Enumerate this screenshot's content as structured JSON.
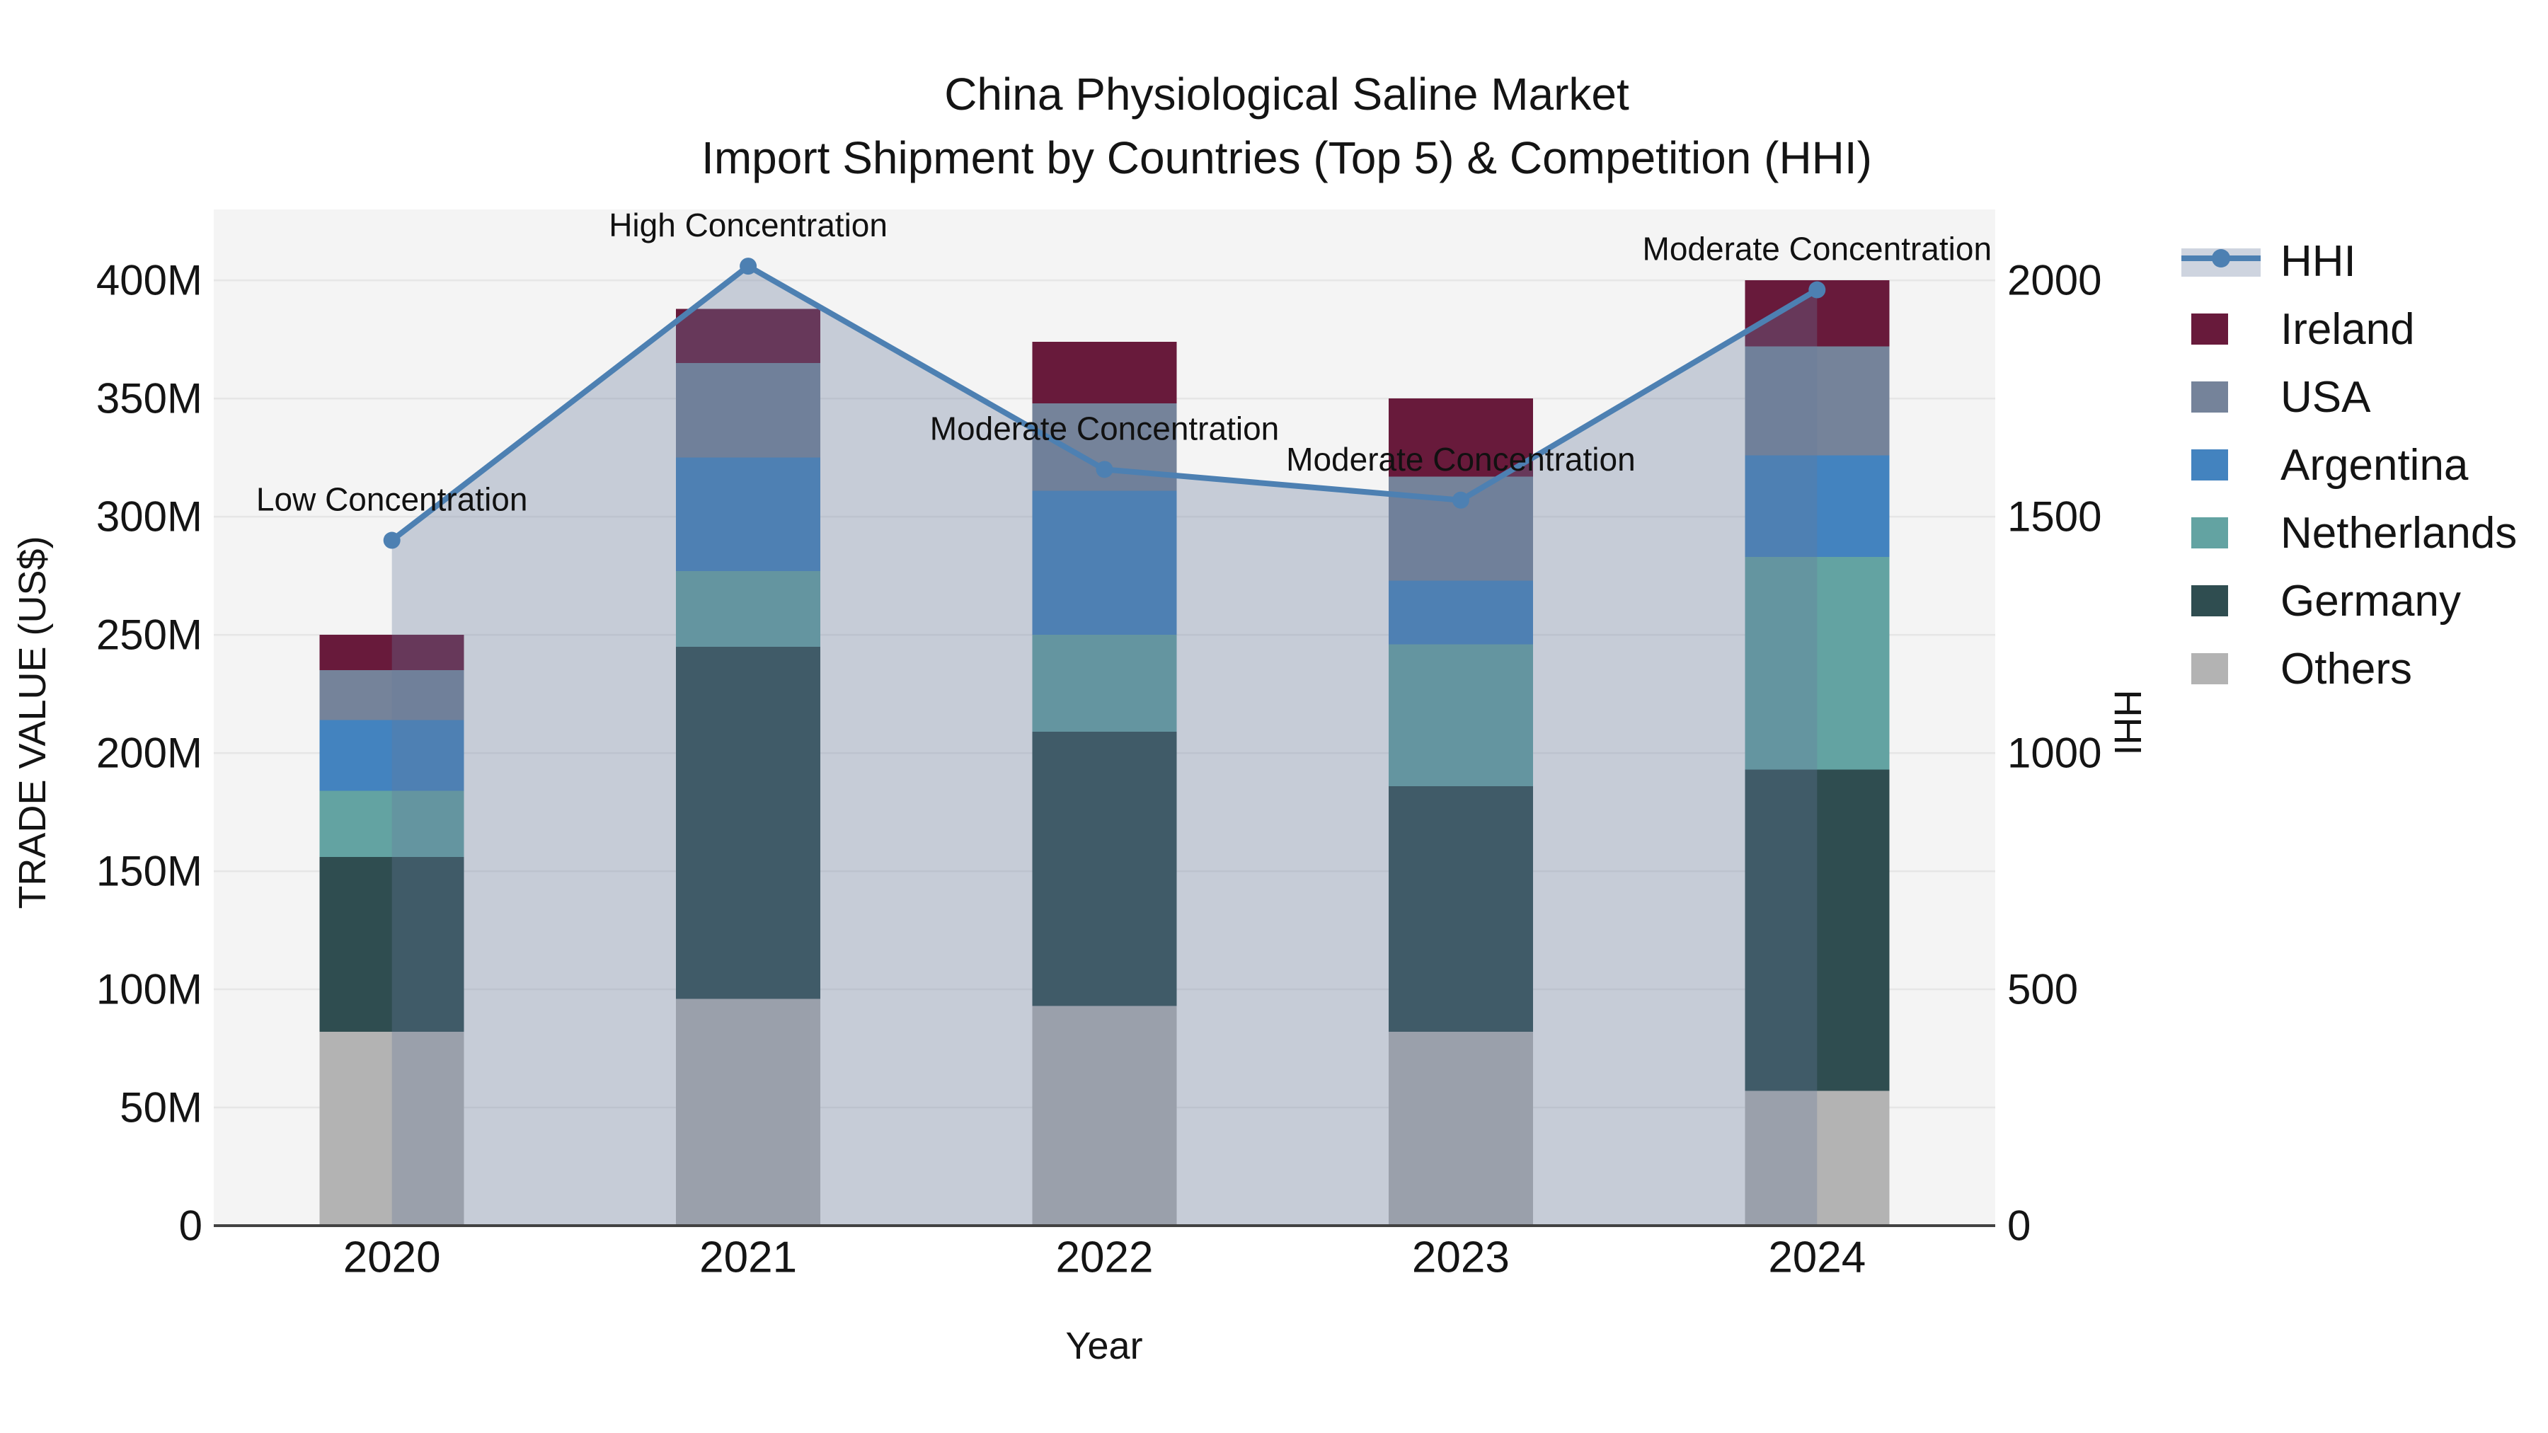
{
  "title": {
    "line1": "China Physiological Saline Market",
    "line2": "Import Shipment by Countries (Top 5) & Competition (HHI)"
  },
  "axes": {
    "x_label": "Year",
    "y_left_label": "TRADE VALUE (US$)",
    "y_right_label": "HHI",
    "y_left_ticks": [
      "0",
      "50M",
      "100M",
      "150M",
      "200M",
      "250M",
      "300M",
      "350M",
      "400M"
    ],
    "y_right_ticks": [
      "0",
      "500",
      "1000",
      "1500",
      "2000"
    ]
  },
  "legend": {
    "items": [
      {
        "label": "HHI",
        "type": "line",
        "color": "#4d80b2"
      },
      {
        "label": "Ireland",
        "type": "box",
        "color": "#681a3b"
      },
      {
        "label": "USA",
        "type": "box",
        "color": "#75839a"
      },
      {
        "label": "Argentina",
        "type": "box",
        "color": "#4383bf"
      },
      {
        "label": "Netherlands",
        "type": "box",
        "color": "#63a3a2"
      },
      {
        "label": "Germany",
        "type": "box",
        "color": "#2f4d50"
      },
      {
        "label": "Others",
        "type": "box",
        "color": "#b3b3b3"
      }
    ]
  },
  "chart_data": {
    "type": "bar+line",
    "categories": [
      "2020",
      "2021",
      "2022",
      "2023",
      "2024"
    ],
    "stack_order_bottom_to_top": [
      "Others",
      "Germany",
      "Netherlands",
      "Argentina",
      "USA",
      "Ireland"
    ],
    "series": [
      {
        "name": "Others",
        "color": "#b3b3b3",
        "values": [
          82,
          96,
          93,
          82,
          57
        ]
      },
      {
        "name": "Germany",
        "color": "#2f4d50",
        "values": [
          74,
          149,
          116,
          104,
          136
        ]
      },
      {
        "name": "Netherlands",
        "color": "#63a3a2",
        "values": [
          28,
          32,
          41,
          60,
          90
        ]
      },
      {
        "name": "Argentina",
        "color": "#4383bf",
        "values": [
          30,
          48,
          61,
          27,
          43
        ]
      },
      {
        "name": "USA",
        "color": "#75839a",
        "values": [
          21,
          40,
          37,
          44,
          46
        ]
      },
      {
        "name": "Ireland",
        "color": "#681a3b",
        "values": [
          15,
          23,
          26,
          33,
          28
        ]
      }
    ],
    "bar_totals": [
      250,
      388,
      374,
      350,
      400
    ],
    "line_series": {
      "name": "HHI",
      "color": "#4d80b2",
      "area_fill": "rgba(104, 122, 155, 0.32)",
      "values": [
        1450,
        2030,
        1600,
        1535,
        1980
      ]
    },
    "annotations": [
      "Low Concentration",
      "High Concentration",
      "Moderate Concentration",
      "Moderate Concentration",
      "Moderate Concentration"
    ],
    "value_unit": "US$ millions",
    "xlabel": "Year",
    "ylabel_left": "TRADE VALUE (US$)",
    "ylabel_right": "HHI",
    "ylim_left": [
      0,
      430
    ],
    "ylim_right": [
      0,
      2150
    ],
    "grid": true,
    "legend_position": "right"
  }
}
